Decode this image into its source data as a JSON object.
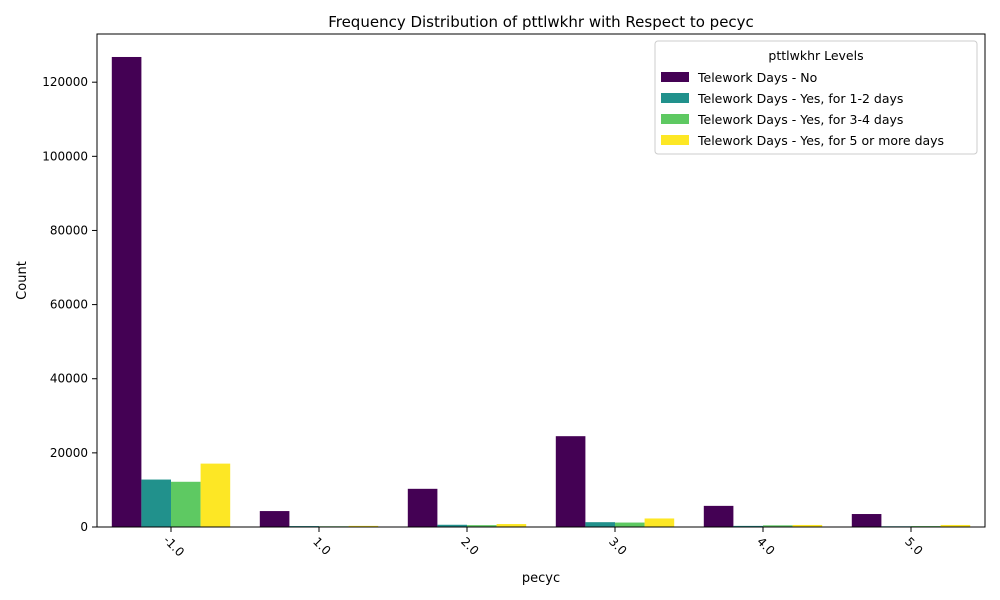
{
  "chart_data": {
    "type": "bar",
    "title": "Frequency Distribution of pttlwkhr with Respect to pecyc",
    "xlabel": "pecyc",
    "ylabel": "Count",
    "categories": [
      "-1.0",
      "1.0",
      "2.0",
      "3.0",
      "4.0",
      "5.0"
    ],
    "ylim": [
      0,
      133000
    ],
    "yticks": [
      0,
      20000,
      40000,
      60000,
      80000,
      100000,
      120000
    ],
    "grid": false,
    "legend": {
      "title": "pttlwkhr Levels",
      "placement": "top-right"
    },
    "series": [
      {
        "name": "Telework Days - No",
        "color": "#440154",
        "values": [
          126800,
          4300,
          10300,
          24500,
          5700,
          3500
        ]
      },
      {
        "name": "Telework Days - Yes, for 1-2 days",
        "color": "#21918c",
        "values": [
          12800,
          250,
          600,
          1300,
          300,
          200
        ]
      },
      {
        "name": "Telework Days - Yes, for 3-4 days",
        "color": "#5ec962",
        "values": [
          12200,
          200,
          500,
          1200,
          450,
          250
        ]
      },
      {
        "name": "Telework Days - Yes, for 5 or more days",
        "color": "#fde725",
        "values": [
          17100,
          300,
          800,
          2300,
          550,
          550
        ]
      }
    ]
  }
}
